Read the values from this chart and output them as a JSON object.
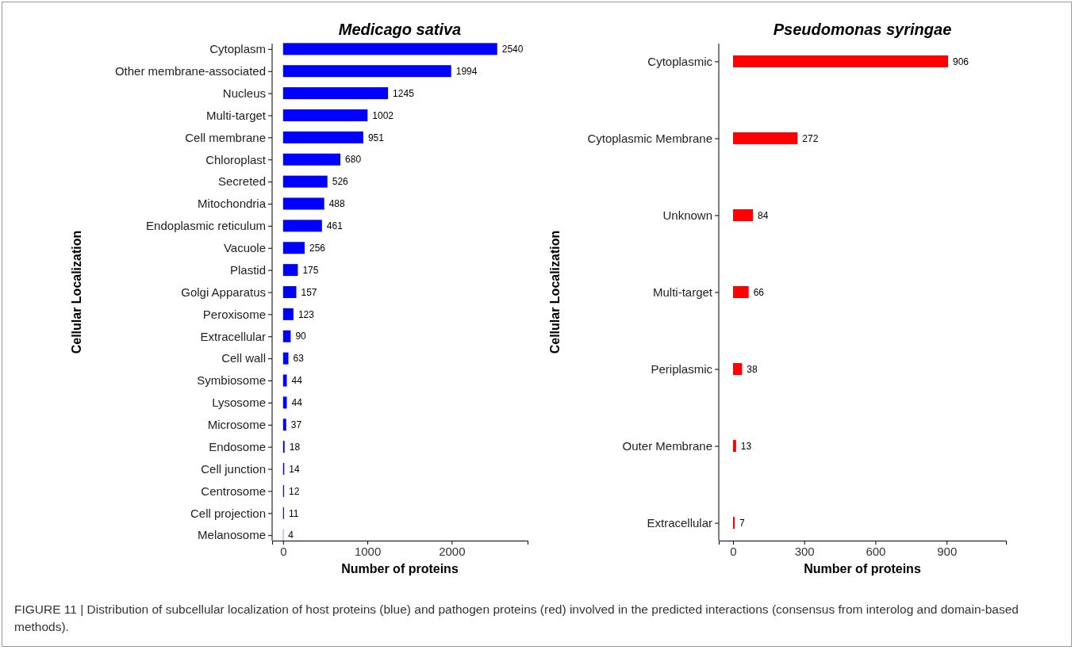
{
  "chart_data": [
    {
      "type": "bar",
      "orientation": "horizontal",
      "title": "Medicago sativa",
      "xlabel": "Number of proteins",
      "ylabel": "Cellular Localization",
      "categories": [
        "Cytoplasm",
        "Other membrane-associated",
        "Nucleus",
        "Multi-target",
        "Cell membrane",
        "Chloroplast",
        "Secreted",
        "Mitochondria",
        "Endoplasmic reticulum",
        "Vacuole",
        "Plastid",
        "Golgi Apparatus",
        "Peroxisome",
        "Extracellular",
        "Cell wall",
        "Symbiosome",
        "Lysosome",
        "Microsome",
        "Endosome",
        "Cell junction",
        "Centrosome",
        "Cell projection",
        "Melanosome"
      ],
      "values": [
        2540,
        1994,
        1245,
        1002,
        951,
        680,
        526,
        488,
        461,
        256,
        175,
        157,
        123,
        90,
        63,
        44,
        44,
        37,
        18,
        14,
        12,
        11,
        4
      ],
      "color": "#0000ff",
      "xlim": [
        -130,
        2900
      ],
      "xticks": [
        0,
        1000,
        2000
      ],
      "data_labels": true,
      "grid": false,
      "annotations": [
        "FIGURE 11 | Distribution of subcellular localization of host proteins (blue) and pathogen proteins (red) involved in the predicted interactions (consensus from interolog and domain-based methods)."
      ]
    },
    {
      "type": "bar",
      "orientation": "horizontal",
      "title": "Pseudomonas syringae",
      "xlabel": "Number of proteins",
      "ylabel": "Cellular Localization",
      "categories": [
        "Cytoplasmic",
        "Cytoplasmic Membrane",
        "Unknown",
        "Multi-target",
        "Periplasmic",
        "Outer Membrane",
        "Extracellular"
      ],
      "values": [
        906,
        272,
        84,
        66,
        38,
        13,
        7
      ],
      "color": "#ff0000",
      "xlim": [
        -60,
        1150
      ],
      "xticks": [
        0,
        300,
        600,
        900
      ],
      "data_labels": true,
      "grid": false
    }
  ]
}
